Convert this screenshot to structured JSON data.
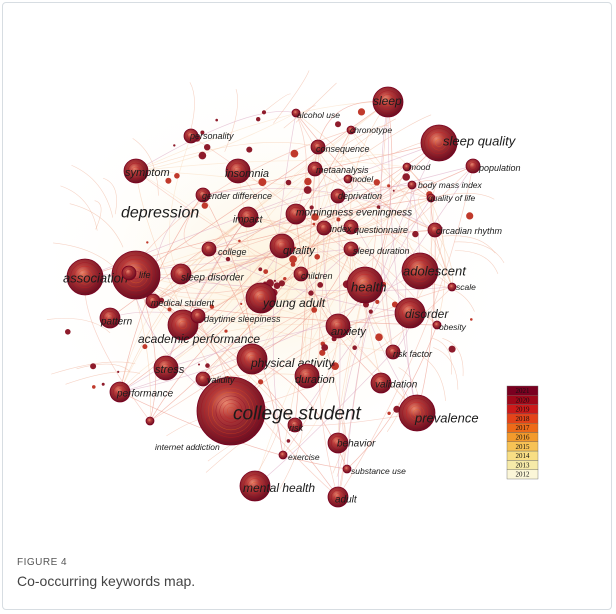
{
  "figure": {
    "label": "FIGURE 4",
    "caption": "Co-occurring keywords map."
  },
  "colors": {
    "timeline": [
      "#7a0020",
      "#a0081a",
      "#cc1a1a",
      "#e44319",
      "#ee6a18",
      "#f39a2c",
      "#f7c255",
      "#f8de84",
      "#f6eaa8",
      "#fbf6d8"
    ]
  },
  "legend": {
    "years": [
      "2021",
      "2020",
      "2019",
      "2018",
      "2017",
      "2016",
      "2015",
      "2014",
      "2013",
      "2012"
    ]
  },
  "keywords": [
    {
      "label": "college student",
      "weight": 10
    },
    {
      "label": "depression",
      "weight": 8
    },
    {
      "label": "sleep quality",
      "weight": 6
    },
    {
      "label": "association",
      "weight": 6
    },
    {
      "label": "health",
      "weight": 6
    },
    {
      "label": "adolescent",
      "weight": 6
    },
    {
      "label": "prevalence",
      "weight": 6
    },
    {
      "label": "disorder",
      "weight": 5
    },
    {
      "label": "mental health",
      "weight": 5
    },
    {
      "label": "young adult",
      "weight": 5
    },
    {
      "label": "academic performance",
      "weight": 5
    },
    {
      "label": "sleep",
      "weight": 5
    },
    {
      "label": "physical activity",
      "weight": 5
    },
    {
      "label": "symptom",
      "weight": 4
    },
    {
      "label": "insomnia",
      "weight": 4
    },
    {
      "label": "stress",
      "weight": 4
    },
    {
      "label": "quality",
      "weight": 4
    },
    {
      "label": "anxiety",
      "weight": 4
    },
    {
      "label": "duration",
      "weight": 4
    },
    {
      "label": "pattern",
      "weight": 3
    },
    {
      "label": "behavior",
      "weight": 3
    },
    {
      "label": "validation",
      "weight": 3
    },
    {
      "label": "impact",
      "weight": 3
    },
    {
      "label": "performance",
      "weight": 3
    },
    {
      "label": "adult",
      "weight": 3
    },
    {
      "label": "sleep disorder",
      "weight": 3
    },
    {
      "label": "morningness eveningness",
      "weight": 3
    },
    {
      "label": "children",
      "weight": 2
    },
    {
      "label": "risk",
      "weight": 2
    },
    {
      "label": "consequence",
      "weight": 2
    },
    {
      "label": "population",
      "weight": 2
    },
    {
      "label": "medical student",
      "weight": 2
    },
    {
      "label": "daytime sleepiness",
      "weight": 2
    },
    {
      "label": "personality",
      "weight": 2
    },
    {
      "label": "gender difference",
      "weight": 2
    },
    {
      "label": "metaanalysis",
      "weight": 2
    },
    {
      "label": "deprivation",
      "weight": 2
    },
    {
      "label": "questionnaire",
      "weight": 2
    },
    {
      "label": "circadian rhythm",
      "weight": 2
    },
    {
      "label": "sleep duration",
      "weight": 2
    },
    {
      "label": "risk factor",
      "weight": 2
    },
    {
      "label": "validity",
      "weight": 2
    },
    {
      "label": "college",
      "weight": 2
    },
    {
      "label": "index",
      "weight": 2
    },
    {
      "label": "life",
      "weight": 2
    },
    {
      "label": "alcohol use",
      "weight": 1
    },
    {
      "label": "chronotype",
      "weight": 1
    },
    {
      "label": "model",
      "weight": 1
    },
    {
      "label": "mood",
      "weight": 1
    },
    {
      "label": "body mass index",
      "weight": 1
    },
    {
      "label": "quality of life",
      "weight": 1
    },
    {
      "label": "scale",
      "weight": 1
    },
    {
      "label": "obesity",
      "weight": 1
    },
    {
      "label": "internet addiction",
      "weight": 1
    },
    {
      "label": "exercise",
      "weight": 1
    },
    {
      "label": "substance use",
      "weight": 1
    }
  ]
}
